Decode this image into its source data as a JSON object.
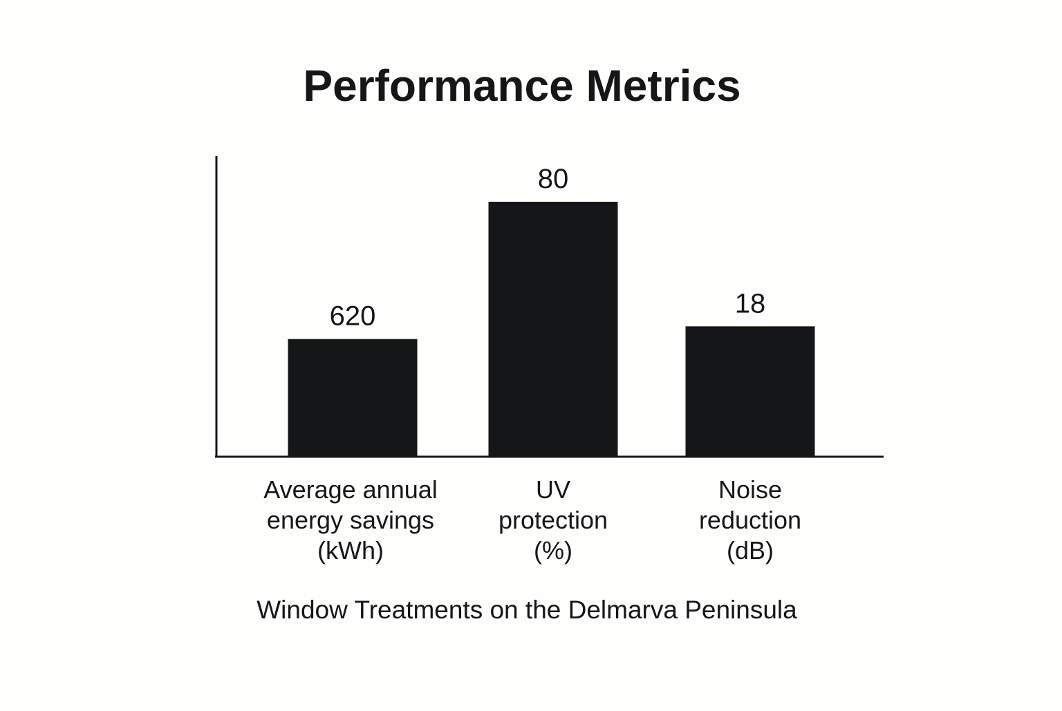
{
  "chart_data": {
    "type": "bar",
    "title": "Performance Metrics",
    "caption": "Window Treatments on the Delmarva Peninsula",
    "categories": [
      [
        "Average annual",
        "energy savings",
        "(kWh)"
      ],
      [
        "UV",
        "protection",
        "(%)"
      ],
      [
        "Noise",
        "reduction",
        "(dB)"
      ]
    ],
    "values": [
      620,
      80,
      18
    ],
    "value_labels": [
      "620",
      "80",
      "18"
    ],
    "relative_heights": [
      0.46,
      1.0,
      0.51
    ],
    "xlabel": "",
    "ylabel": "",
    "grid": false,
    "legend": "none",
    "colors": {
      "bar": "#151617",
      "axis": "#151617",
      "text": "#151617",
      "background": "#fefefc"
    }
  }
}
